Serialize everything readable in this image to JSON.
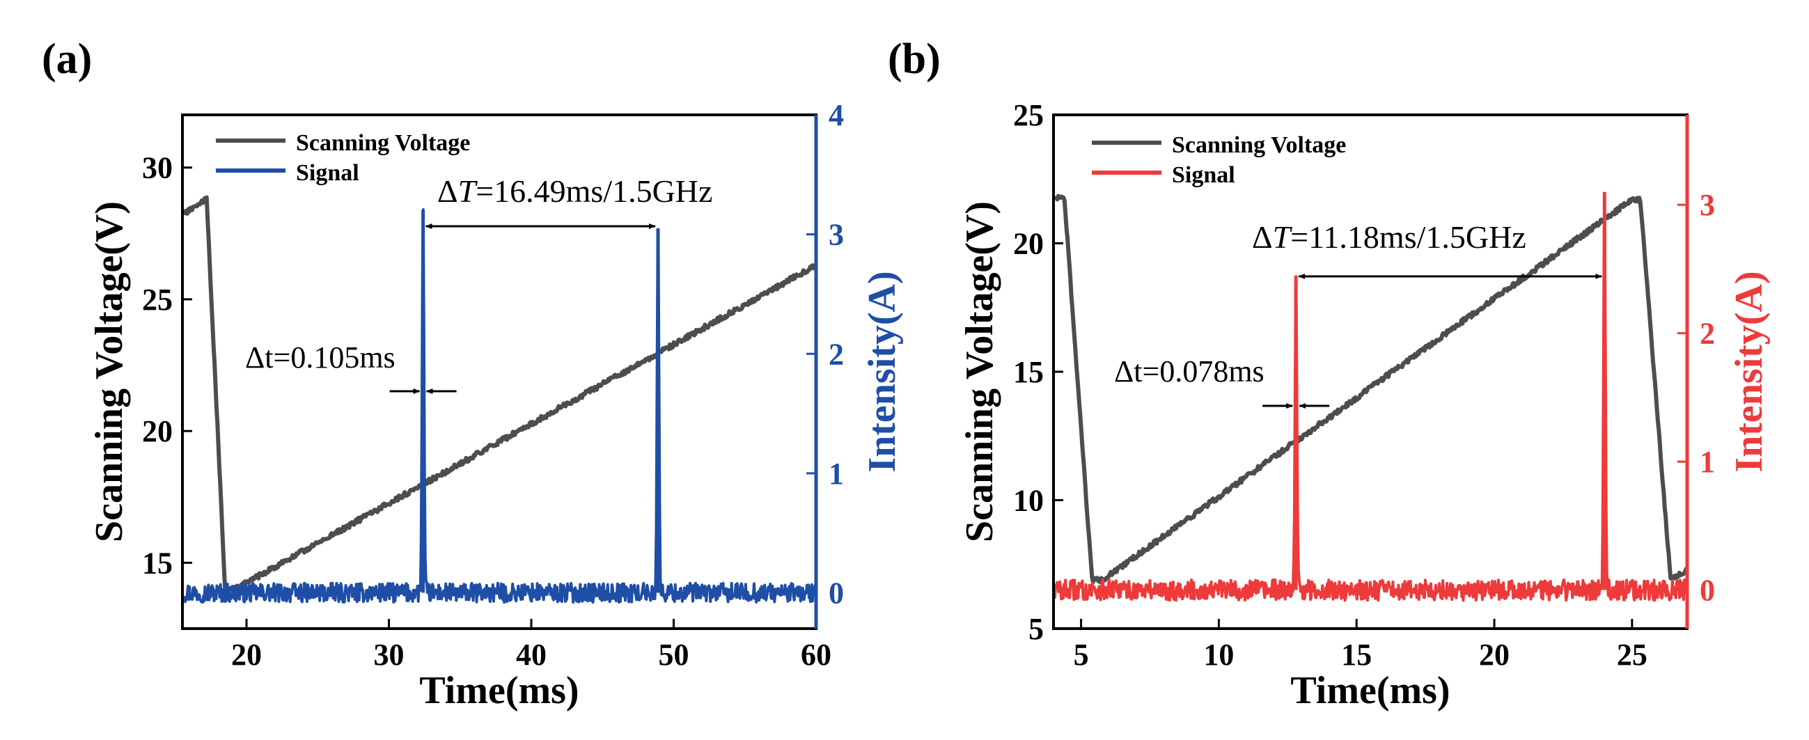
{
  "chart_data": [
    {
      "id": "a",
      "panel_label": "(a)",
      "type": "line",
      "xlabel": "Time(ms)",
      "ylabel": "Scanning Voltage(V)",
      "ylabel_right": "Intensity(A)",
      "xlim": [
        15.5,
        60
      ],
      "ylim": [
        12.5,
        32
      ],
      "ylim_right": [
        -0.3,
        4
      ],
      "xticks": [
        20,
        30,
        40,
        50,
        60
      ],
      "yticks": [
        15,
        20,
        25,
        30
      ],
      "yticks_right": [
        0,
        1,
        2,
        3,
        4
      ],
      "accent_color": "#1f4ea6",
      "voltage_color": "#4d4d4d",
      "legend": [
        "Scanning Voltage",
        "Signal"
      ],
      "legend_position": "top-left",
      "series": [
        {
          "name": "Scanning Voltage",
          "axis": "left",
          "points": [
            [
              15.5,
              28.2
            ],
            [
              17.2,
              28.8
            ],
            [
              18.5,
              14.0
            ],
            [
              19.2,
              14.0
            ],
            [
              60,
              26.3
            ]
          ]
        },
        {
          "name": "Signal",
          "axis": "right",
          "baseline": 0.0,
          "peaks": [
            {
              "x": 32.4,
              "y": 3.2
            },
            {
              "x": 48.9,
              "y": 3.05
            }
          ]
        }
      ],
      "annotations": {
        "delta_T": {
          "prefix": "Δ",
          "symbol": "T",
          "text": "=16.49ms/1.5GHz",
          "x1": 32.4,
          "x2": 48.9
        },
        "delta_t": {
          "text": "Δt=0.105ms",
          "x": 32.4
        }
      }
    },
    {
      "id": "b",
      "panel_label": "(b)",
      "type": "line",
      "xlabel": "Time(ms)",
      "ylabel": "Scanning Voltage(V)",
      "ylabel_right": "Intensity(A)",
      "xlim": [
        4,
        27
      ],
      "ylim": [
        5,
        25
      ],
      "ylim_right": [
        -0.3,
        3.7
      ],
      "xticks": [
        5,
        10,
        15,
        20,
        25
      ],
      "yticks": [
        5,
        10,
        15,
        20,
        25
      ],
      "yticks_right": [
        0,
        1,
        2,
        3
      ],
      "accent_color": "#ee3a3a",
      "voltage_color": "#4d4d4d",
      "legend": [
        "Scanning Voltage",
        "Signal"
      ],
      "legend_position": "top-left",
      "series": [
        {
          "name": "Scanning Voltage",
          "axis": "left",
          "points": [
            [
              4.1,
              21.8
            ],
            [
              4.4,
              21.7
            ],
            [
              5.4,
              6.9
            ],
            [
              5.8,
              6.9
            ],
            [
              25.0,
              21.7
            ],
            [
              25.3,
              21.7
            ],
            [
              26.4,
              6.9
            ],
            [
              27,
              7.3
            ]
          ]
        },
        {
          "name": "Signal",
          "axis": "right",
          "baseline": 0.0,
          "peaks": [
            {
              "x": 12.8,
              "y": 2.45
            },
            {
              "x": 24.0,
              "y": 3.1
            }
          ]
        }
      ],
      "annotations": {
        "delta_T": {
          "prefix": "Δ",
          "symbol": "T",
          "text": "=11.18ms/1.5GHz",
          "x1": 12.8,
          "x2": 24.0
        },
        "delta_t": {
          "text": "Δt=0.078ms",
          "x": 12.8
        }
      }
    }
  ]
}
